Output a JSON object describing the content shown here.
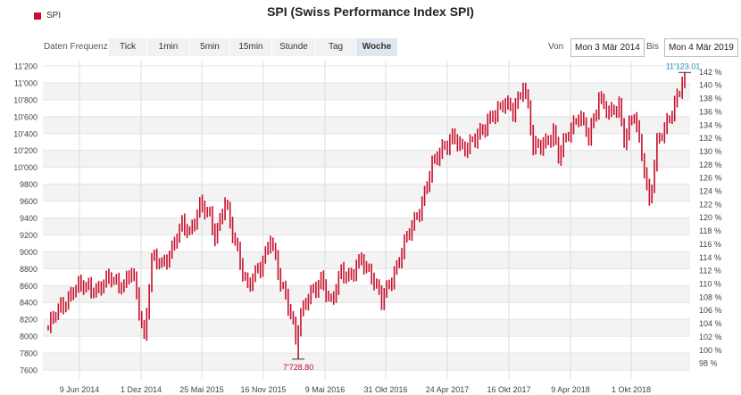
{
  "header": {
    "title": "SPI (Swiss Performance Index SPI)",
    "legend_label": "SPI",
    "legend_color": "#c8102e"
  },
  "toolbar": {
    "frequency_label": "Daten Frequenz",
    "tabs": [
      "Tick",
      "1min",
      "5min",
      "15min",
      "Stunde",
      "Tag",
      "Woche"
    ],
    "active_tab": "Woche",
    "from_label": "Von",
    "from_value": "Mon 3 Mär 2014",
    "to_label": "Bis",
    "to_value": "Mon 4 Mär 2019"
  },
  "chart_data": {
    "type": "ohlc",
    "title": "SPI (Swiss Performance Index SPI)",
    "series_name": "SPI",
    "color": "#c8102e",
    "x_tick_labels": [
      "9 Jun 2014",
      "1 Dez 2014",
      "25 Mai 2015",
      "16 Nov 2015",
      "9 Mai 2016",
      "31 Okt 2016",
      "24 Apr 2017",
      "16 Okt 2017",
      "9 Apr 2018",
      "1 Okt 2018"
    ],
    "y_left_ticks": [
      "7600",
      "7800",
      "8000",
      "8200",
      "8400",
      "8600",
      "8800",
      "9000",
      "9200",
      "9400",
      "9600",
      "9800",
      "10'000",
      "10'200",
      "10'400",
      "10'600",
      "10'800",
      "11'000",
      "11'200"
    ],
    "y_left_range": [
      7600,
      11200
    ],
    "y_right_ticks": [
      "98 %",
      "100 %",
      "102 %",
      "104 %",
      "106 %",
      "108 %",
      "110 %",
      "112 %",
      "114 %",
      "116 %",
      "118 %",
      "120 %",
      "122 %",
      "124 %",
      "126 %",
      "128 %",
      "130 %",
      "132 %",
      "134 %",
      "136 %",
      "138 %",
      "140 %",
      "142 %"
    ],
    "annotation_high": "11'123.01",
    "annotation_low": "7'728.80",
    "keypoints": [
      [
        0,
        8100
      ],
      [
        5,
        8350
      ],
      [
        10,
        8550
      ],
      [
        16,
        8600
      ],
      [
        20,
        8550
      ],
      [
        25,
        8700
      ],
      [
        30,
        8600
      ],
      [
        33,
        8750
      ],
      [
        35,
        8500
      ],
      [
        38,
        8000
      ],
      [
        41,
        8900
      ],
      [
        45,
        8850
      ],
      [
        49,
        9050
      ],
      [
        53,
        9300
      ],
      [
        56,
        9250
      ],
      [
        60,
        9550
      ],
      [
        64,
        9400
      ],
      [
        66,
        9200
      ],
      [
        70,
        9600
      ],
      [
        72,
        9300
      ],
      [
        75,
        9000
      ],
      [
        79,
        8600
      ],
      [
        84,
        8800
      ],
      [
        88,
        9200
      ],
      [
        92,
        8600
      ],
      [
        96,
        8300
      ],
      [
        98,
        8000
      ],
      [
        100,
        8250
      ],
      [
        104,
        8500
      ],
      [
        108,
        8700
      ],
      [
        112,
        8350
      ],
      [
        116,
        8800
      ],
      [
        120,
        8700
      ],
      [
        124,
        8900
      ],
      [
        128,
        8750
      ],
      [
        132,
        8400
      ],
      [
        136,
        8700
      ],
      [
        140,
        9000
      ],
      [
        144,
        9300
      ],
      [
        148,
        9600
      ],
      [
        152,
        10000
      ],
      [
        156,
        10250
      ],
      [
        160,
        10350
      ],
      [
        164,
        10200
      ],
      [
        168,
        10350
      ],
      [
        172,
        10400
      ],
      [
        176,
        10650
      ],
      [
        180,
        10750
      ],
      [
        184,
        10650
      ],
      [
        188,
        11000
      ],
      [
        190,
        10700
      ],
      [
        192,
        10200
      ],
      [
        196,
        10300
      ],
      [
        200,
        10400
      ],
      [
        202,
        10100
      ],
      [
        206,
        10450
      ],
      [
        210,
        10600
      ],
      [
        214,
        10350
      ],
      [
        218,
        10850
      ],
      [
        222,
        10600
      ],
      [
        226,
        10750
      ],
      [
        228,
        10350
      ],
      [
        232,
        10600
      ],
      [
        236,
        10000
      ],
      [
        238,
        9600
      ],
      [
        241,
        10250
      ],
      [
        244,
        10450
      ],
      [
        247,
        10700
      ],
      [
        250,
        10900
      ],
      [
        252,
        11123
      ]
    ],
    "low_index": 99,
    "high_index": 252
  }
}
